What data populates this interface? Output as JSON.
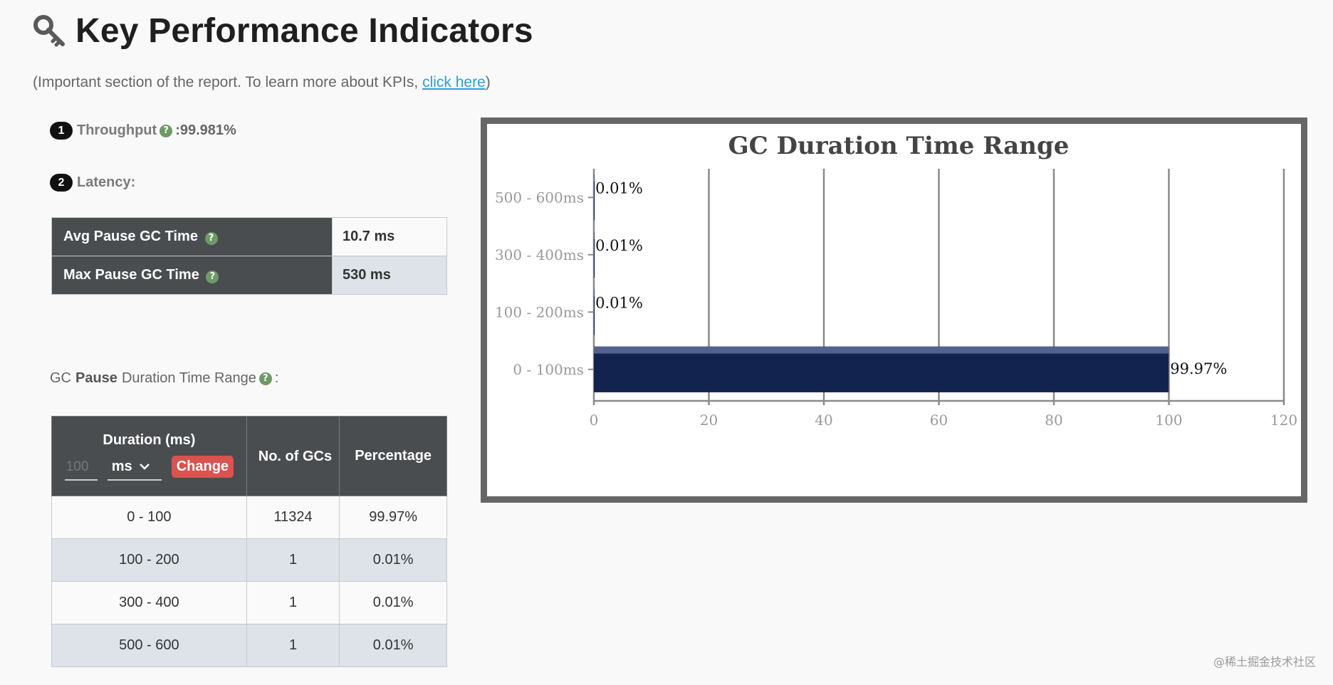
{
  "header": {
    "title": "Key Performance Indicators",
    "icon": "key-icon"
  },
  "subtitle": {
    "text": "(Important section of the report. To learn more about KPIs, ",
    "link": "click here",
    "close": ")"
  },
  "throughput": {
    "number": "1",
    "label": "Throughput",
    "separator": " : ",
    "value": "99.981%"
  },
  "latency": {
    "number": "2",
    "label": "Latency:",
    "rows": [
      {
        "label": "Avg Pause GC Time",
        "value": "10.7 ms"
      },
      {
        "label": "Max Pause GC Time",
        "value": "530 ms"
      }
    ]
  },
  "gc_range": {
    "title_pre": "GC",
    "title_bold": "Pause",
    "title_post": "Duration Time Range",
    "title_suffix": ":",
    "headers": {
      "duration": "Duration (ms)",
      "count": "No. of GCs",
      "percentage": "Percentage"
    },
    "duration_placeholder": "100",
    "unit": "ms",
    "change_label": "Change",
    "rows": [
      {
        "range": "0 - 100",
        "count": "11324",
        "percentage": "99.97%"
      },
      {
        "range": "100 - 200",
        "count": "1",
        "percentage": "0.01%"
      },
      {
        "range": "300 - 400",
        "count": "1",
        "percentage": "0.01%"
      },
      {
        "range": "500 - 600",
        "count": "1",
        "percentage": "0.01%"
      }
    ]
  },
  "chart_data": {
    "type": "bar",
    "orientation": "horizontal",
    "title": "GC Duration Time Range",
    "categories": [
      "500 - 600ms",
      "300 - 400ms",
      "100 - 200ms",
      "0 - 100ms"
    ],
    "values": [
      0.01,
      0.01,
      0.01,
      99.97
    ],
    "value_labels": [
      "0.01%",
      "0.01%",
      "0.01%",
      "99.97%"
    ],
    "xlim": [
      0,
      120
    ],
    "xticks": [
      0,
      20,
      40,
      60,
      80,
      100,
      120
    ],
    "grid": true,
    "bar_color": "#13234f"
  },
  "colors": {
    "header_bg": "#4a4d50",
    "help_icon": "#6f9a66",
    "change_button": "#d9534f",
    "link": "#2a9fd6"
  },
  "watermark": "@稀土掘金技术社区"
}
